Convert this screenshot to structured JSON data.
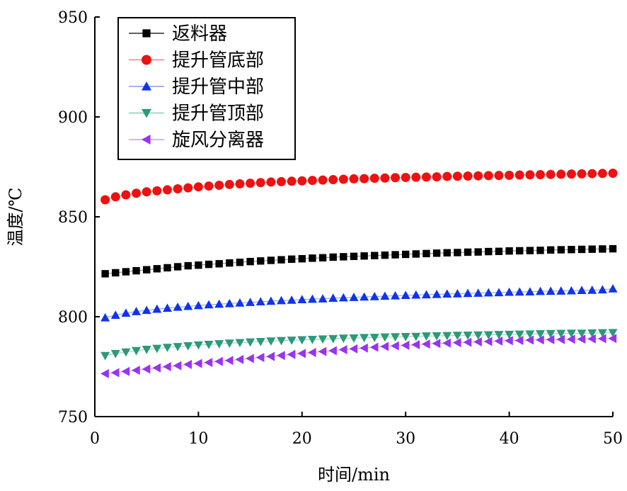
{
  "chart_data": {
    "type": "scatter",
    "xlabel": "时间/min",
    "ylabel": "温度/℃",
    "xlim": [
      0,
      50
    ],
    "ylim": [
      750,
      950
    ],
    "xticks": [
      0,
      10,
      20,
      30,
      40,
      50
    ],
    "yticks": [
      750,
      800,
      850,
      900,
      950
    ],
    "grid": false,
    "legend_position": "top-left",
    "x": [
      1,
      2,
      3,
      4,
      5,
      6,
      7,
      8,
      9,
      10,
      11,
      12,
      13,
      14,
      15,
      16,
      17,
      18,
      19,
      20,
      21,
      22,
      23,
      24,
      25,
      26,
      27,
      28,
      29,
      30,
      31,
      32,
      33,
      34,
      35,
      36,
      37,
      38,
      39,
      40,
      41,
      42,
      43,
      44,
      45,
      46,
      47,
      48,
      49,
      50
    ],
    "series": [
      {
        "name": "返料器",
        "marker": "square",
        "color": "#000000",
        "values": [
          821.5,
          822.0,
          822.5,
          823.0,
          823.5,
          824.0,
          824.5,
          825.0,
          825.5,
          825.8,
          826.2,
          826.5,
          826.9,
          827.2,
          827.6,
          827.9,
          828.2,
          828.5,
          828.8,
          829.0,
          829.3,
          829.5,
          829.8,
          830.0,
          830.2,
          830.4,
          830.6,
          830.8,
          831.0,
          831.2,
          831.4,
          831.6,
          831.8,
          832.0,
          832.1,
          832.3,
          832.4,
          832.6,
          832.7,
          832.9,
          833.0,
          833.1,
          833.2,
          833.4,
          833.5,
          833.6,
          833.7,
          833.8,
          833.9,
          834.0
        ]
      },
      {
        "name": "提升管底部",
        "marker": "circle",
        "color": "#ee1111",
        "values": [
          858.5,
          860.0,
          861.0,
          861.8,
          862.5,
          863.0,
          863.5,
          864.0,
          864.5,
          865.0,
          865.4,
          865.8,
          866.2,
          866.5,
          866.8,
          867.1,
          867.4,
          867.6,
          867.8,
          868.0,
          868.2,
          868.4,
          868.6,
          868.8,
          869.0,
          869.1,
          869.3,
          869.4,
          869.6,
          869.7,
          869.8,
          869.9,
          870.0,
          870.2,
          870.3,
          870.4,
          870.5,
          870.6,
          870.7,
          870.8,
          870.9,
          871.0,
          871.1,
          871.2,
          871.3,
          871.4,
          871.5,
          871.6,
          871.7,
          871.8
        ]
      },
      {
        "name": "提升管中部",
        "marker": "triangle-up",
        "color": "#1133ee",
        "values": [
          799.5,
          800.8,
          801.8,
          802.6,
          803.2,
          803.8,
          804.3,
          804.8,
          805.2,
          805.6,
          806.0,
          806.3,
          806.6,
          806.9,
          807.2,
          807.5,
          807.8,
          808.1,
          808.3,
          808.6,
          808.8,
          809.0,
          809.3,
          809.5,
          809.7,
          809.9,
          810.1,
          810.3,
          810.5,
          810.7,
          810.9,
          811.0,
          811.2,
          811.4,
          811.5,
          811.7,
          811.8,
          812.0,
          812.1,
          812.3,
          812.4,
          812.5,
          812.7,
          812.8,
          812.9,
          813.0,
          813.2,
          813.3,
          813.5,
          814.0
        ]
      },
      {
        "name": "提升管顶部",
        "marker": "triangle-down",
        "color": "#2a9a78",
        "values": [
          780.5,
          781.5,
          782.3,
          783.0,
          783.6,
          784.1,
          784.6,
          785.0,
          785.4,
          785.8,
          786.1,
          786.4,
          786.7,
          787.0,
          787.3,
          787.5,
          787.8,
          788.0,
          788.2,
          788.4,
          788.6,
          788.8,
          789.0,
          789.2,
          789.3,
          789.5,
          789.6,
          789.8,
          789.9,
          790.0,
          790.1,
          790.3,
          790.4,
          790.5,
          790.6,
          790.7,
          790.8,
          790.9,
          791.0,
          791.1,
          791.2,
          791.3,
          791.4,
          791.5,
          791.6,
          791.7,
          791.7,
          791.8,
          791.9,
          792.0
        ]
      },
      {
        "name": "旋风分离器",
        "marker": "triangle-left",
        "color": "#9933ee",
        "values": [
          771.5,
          772.0,
          772.6,
          773.2,
          773.8,
          774.4,
          775.0,
          775.5,
          776.1,
          776.6,
          777.1,
          777.6,
          778.1,
          778.6,
          779.1,
          779.6,
          780.1,
          780.6,
          781.1,
          781.6,
          782.1,
          782.6,
          783.0,
          783.5,
          783.9,
          784.3,
          784.7,
          785.1,
          785.4,
          785.7,
          786.0,
          786.3,
          786.6,
          786.8,
          787.0,
          787.2,
          787.4,
          787.6,
          787.8,
          788.0,
          788.1,
          788.3,
          788.4,
          788.5,
          788.6,
          788.7,
          788.8,
          788.9,
          789.0,
          789.1
        ]
      }
    ]
  }
}
